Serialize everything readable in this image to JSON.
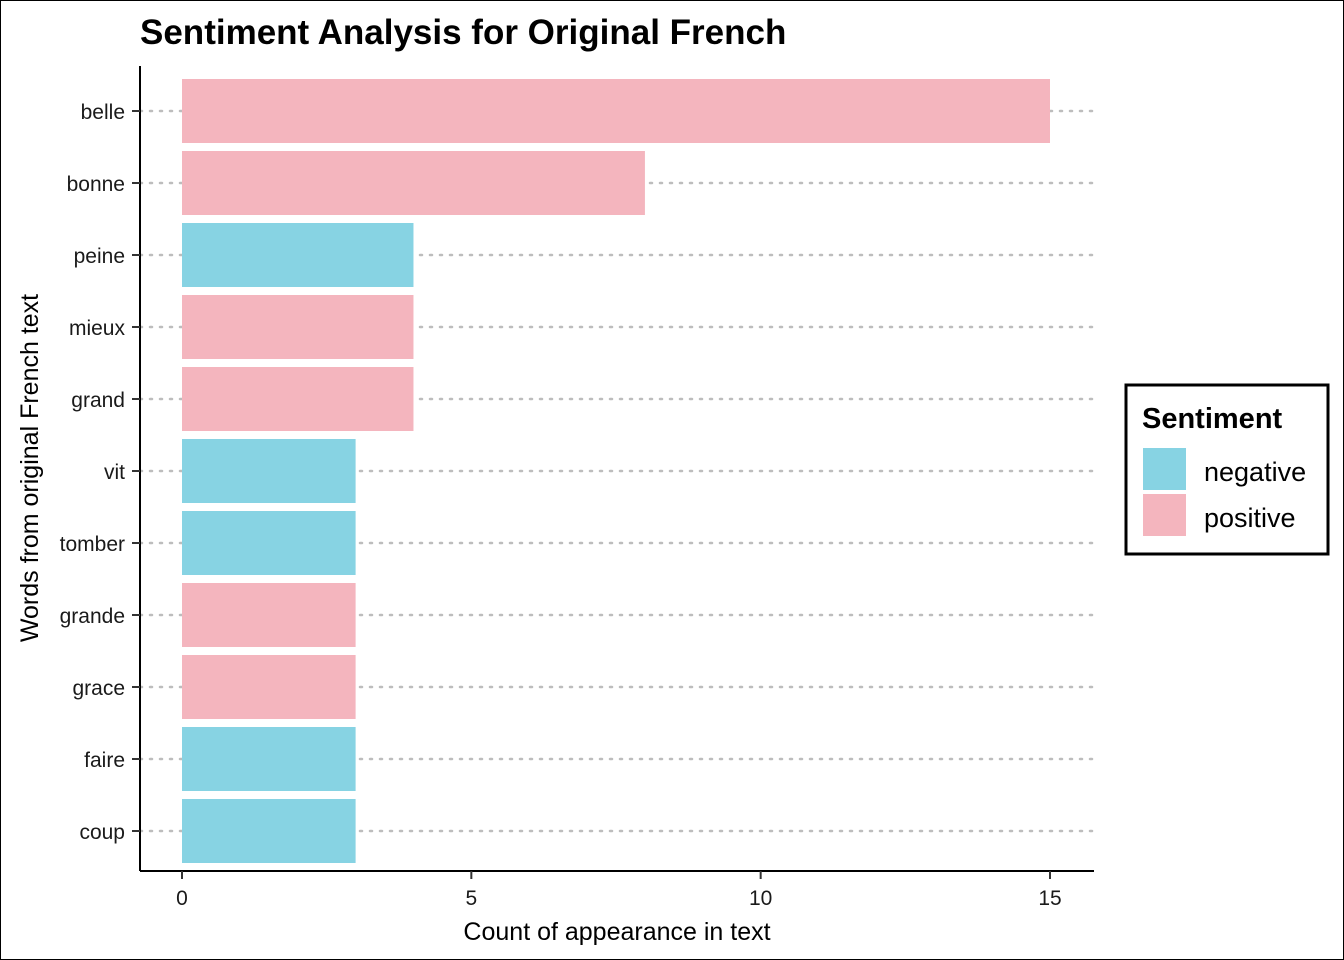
{
  "chart_data": {
    "type": "bar",
    "orientation": "horizontal",
    "title": "Sentiment Analysis for Original French",
    "xlabel": "Count of appearance in text",
    "ylabel": "Words from original French text",
    "xlim": [
      0,
      15.75
    ],
    "xticks": [
      0,
      5,
      10,
      15
    ],
    "grid": "dotted horizontal lines at each category",
    "categories": [
      "belle",
      "bonne",
      "peine",
      "mieux",
      "grand",
      "vit",
      "tomber",
      "grande",
      "grace",
      "faire",
      "coup"
    ],
    "values": [
      15,
      8,
      4,
      4,
      4,
      3,
      3,
      3,
      3,
      3,
      3
    ],
    "sentiment": [
      "positive",
      "positive",
      "negative",
      "positive",
      "positive",
      "negative",
      "negative",
      "positive",
      "positive",
      "negative",
      "negative"
    ],
    "legend": {
      "title": "Sentiment",
      "placement": "right",
      "entries": [
        {
          "name": "negative",
          "color": "#87D3E3"
        },
        {
          "name": "positive",
          "color": "#F4B5BE"
        }
      ]
    }
  }
}
